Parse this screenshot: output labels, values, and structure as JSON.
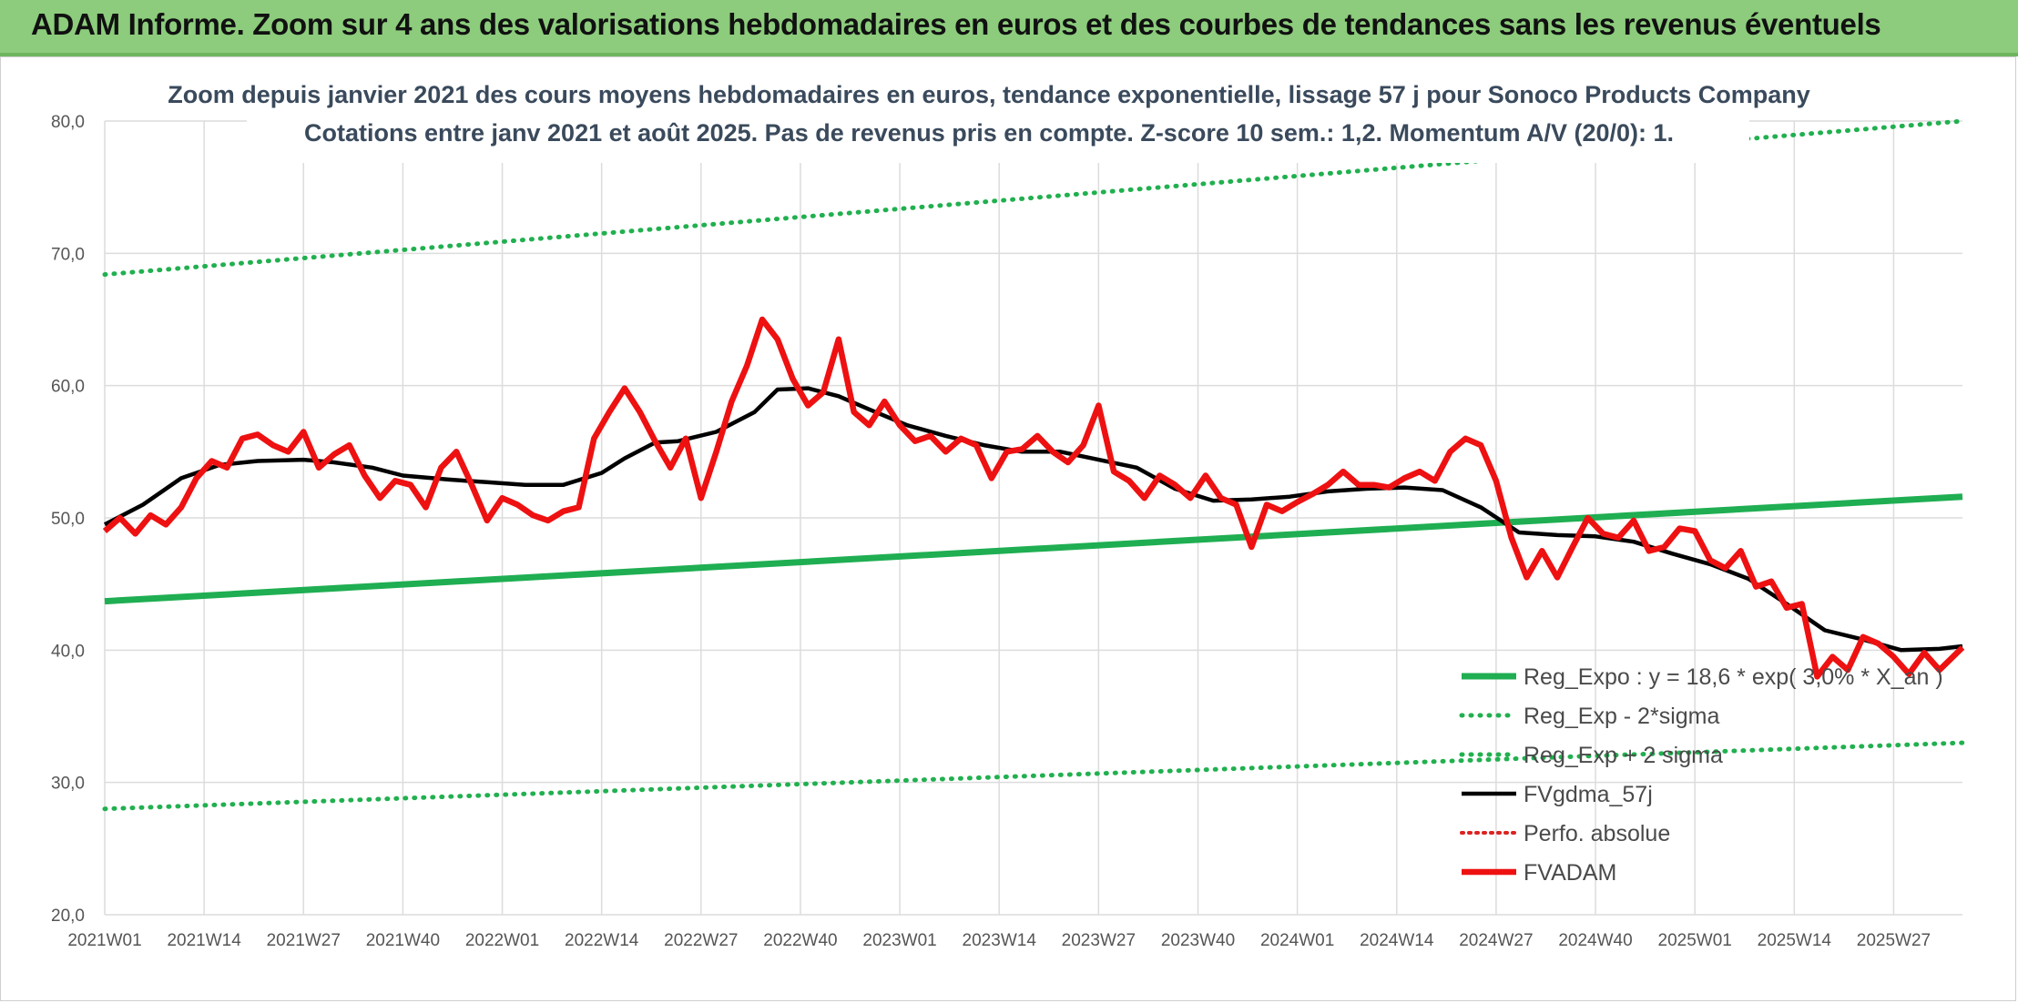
{
  "banner": {
    "title": "ADAM Informe. Zoom sur 4 ans des valorisations hebdomadaires en euros et des courbes de tendances sans les revenus éventuels"
  },
  "colors": {
    "banner_bg": "#8ccc7c",
    "trend_green": "#1fae52",
    "band_green": "#21b04f",
    "adam_red": "#ee1111",
    "smooth_black": "#000000",
    "perf_red": "#dd2222",
    "grid": "#dcdcdc"
  },
  "chart_data": {
    "type": "line",
    "title_lines": [
      "Zoom depuis janvier 2021 des cours moyens hebdomadaires en euros, tendance exponentielle, lissage 57 j pour Sonoco Products Company",
      "Cotations entre janv 2021 et août 2025. Pas de revenus pris en compte. Z-score 10 sem.: 1,2. Momentum A/V (20/0): 1."
    ],
    "ylim": [
      20,
      80
    ],
    "y_ticks": [
      "20,0",
      "30,0",
      "40,0",
      "50,0",
      "60,0",
      "70,0",
      "80,0"
    ],
    "y_tick_values": [
      20,
      30,
      40,
      50,
      60,
      70,
      80
    ],
    "x_range": [
      0,
      243
    ],
    "x_ticks": [
      "2021W01",
      "2021W14",
      "2021W27",
      "2021W40",
      "2022W01",
      "2022W14",
      "2022W27",
      "2022W40",
      "2023W01",
      "2023W14",
      "2023W27",
      "2023W40",
      "2024W01",
      "2024W14",
      "2024W27",
      "2024W40",
      "2025W01",
      "2025W14",
      "2025W27"
    ],
    "x_tick_index": [
      0,
      13,
      26,
      39,
      52,
      65,
      78,
      91,
      104,
      117,
      130,
      143,
      156,
      169,
      182,
      195,
      208,
      221,
      234
    ],
    "legend": {
      "placement": "bottom-right",
      "entries": [
        "Reg_Expo : y = 18,6 * exp( 3,0% *  X_an )",
        "Reg_Exp - 2*sigma",
        "Reg_Exp + 2 sigma",
        "FVgdma_57j",
        "Perfo. absolue",
        "FVADAM"
      ]
    },
    "series": [
      {
        "name": "Reg_Expo : y = 18,6 * exp( 3,0% *  X_an )",
        "style": "solid-green",
        "x": [
          0,
          243
        ],
        "y": [
          43.7,
          51.6
        ]
      },
      {
        "name": "Reg_Exp + 2 sigma",
        "style": "dotted-green",
        "x": [
          0,
          243
        ],
        "y": [
          68.4,
          80.0
        ]
      },
      {
        "name": "Reg_Exp - 2*sigma",
        "style": "dotted-green",
        "x": [
          0,
          243
        ],
        "y": [
          28.0,
          33.0
        ]
      },
      {
        "name": "FVgdma_57j",
        "style": "solid-black",
        "x": [
          0,
          5,
          10,
          15,
          20,
          26,
          30,
          35,
          39,
          45,
          50,
          55,
          60,
          65,
          68,
          72,
          75,
          80,
          85,
          88,
          92,
          96,
          100,
          105,
          110,
          115,
          120,
          125,
          130,
          135,
          140,
          145,
          150,
          155,
          160,
          165,
          170,
          175,
          180,
          185,
          190,
          195,
          200,
          205,
          210,
          215,
          220,
          225,
          230,
          235,
          240,
          243
        ],
        "y": [
          49.5,
          51.0,
          53.0,
          54.0,
          54.3,
          54.4,
          54.2,
          53.8,
          53.2,
          52.9,
          52.7,
          52.5,
          52.5,
          53.4,
          54.5,
          55.7,
          55.8,
          56.5,
          58.0,
          59.7,
          59.8,
          59.2,
          58.2,
          57.0,
          56.2,
          55.5,
          55.0,
          55.0,
          54.4,
          53.8,
          52.2,
          51.3,
          51.4,
          51.6,
          52.0,
          52.2,
          52.3,
          52.1,
          50.8,
          48.9,
          48.7,
          48.6,
          48.2,
          47.3,
          46.5,
          45.4,
          43.5,
          41.5,
          40.8,
          40.0,
          40.1,
          40.3
        ]
      },
      {
        "name": "FVADAM",
        "style": "solid-red",
        "x": [
          0,
          2,
          4,
          6,
          8,
          10,
          12,
          14,
          16,
          18,
          20,
          22,
          24,
          26,
          28,
          30,
          32,
          34,
          36,
          38,
          40,
          42,
          44,
          46,
          48,
          50,
          52,
          54,
          56,
          58,
          60,
          62,
          64,
          66,
          68,
          70,
          72,
          74,
          76,
          78,
          80,
          82,
          84,
          86,
          88,
          90,
          92,
          94,
          96,
          98,
          100,
          102,
          104,
          106,
          108,
          110,
          112,
          114,
          116,
          118,
          120,
          122,
          124,
          126,
          128,
          130,
          132,
          134,
          136,
          138,
          140,
          142,
          144,
          146,
          148,
          150,
          152,
          154,
          156,
          158,
          160,
          162,
          164,
          166,
          168,
          170,
          172,
          174,
          176,
          178,
          180,
          182,
          184,
          186,
          188,
          190,
          192,
          194,
          196,
          198,
          200,
          202,
          204,
          206,
          208,
          210,
          212,
          214,
          216,
          218,
          220,
          222,
          224,
          226,
          228,
          230,
          232,
          234,
          236,
          238,
          240,
          243
        ],
        "y": [
          49.0,
          50.0,
          48.8,
          50.2,
          49.5,
          50.8,
          53.0,
          54.3,
          53.8,
          56.0,
          56.3,
          55.5,
          55.0,
          56.5,
          53.8,
          54.8,
          55.5,
          53.2,
          51.5,
          52.8,
          52.5,
          50.8,
          53.8,
          55.0,
          52.5,
          49.8,
          51.5,
          51.0,
          50.2,
          49.8,
          50.5,
          50.8,
          56.0,
          58.0,
          59.8,
          58.0,
          55.8,
          53.8,
          56.0,
          51.5,
          55.0,
          58.8,
          61.5,
          65.0,
          63.5,
          60.5,
          58.5,
          59.5,
          63.5,
          58.0,
          57.0,
          58.8,
          57.0,
          55.8,
          56.2,
          55.0,
          56.0,
          55.5,
          53.0,
          55.0,
          55.2,
          56.2,
          55.0,
          54.2,
          55.5,
          58.5,
          53.5,
          52.8,
          51.5,
          53.2,
          52.5,
          51.5,
          53.2,
          51.5,
          51.0,
          47.8,
          51.0,
          50.5,
          51.2,
          51.8,
          52.5,
          53.5,
          52.5,
          52.5,
          52.3,
          53.0,
          53.5,
          52.8,
          55.0,
          56.0,
          55.5,
          52.8,
          48.5,
          45.5,
          47.5,
          45.5,
          47.8,
          50.0,
          48.8,
          48.5,
          49.8,
          47.5,
          47.8,
          49.2,
          49.0,
          46.8,
          46.2,
          47.5,
          44.8,
          45.2,
          43.2,
          43.5,
          38.0,
          39.5,
          38.5,
          41.0,
          40.5,
          39.5,
          38.2,
          39.8,
          38.5,
          40.2
        ]
      }
    ]
  }
}
